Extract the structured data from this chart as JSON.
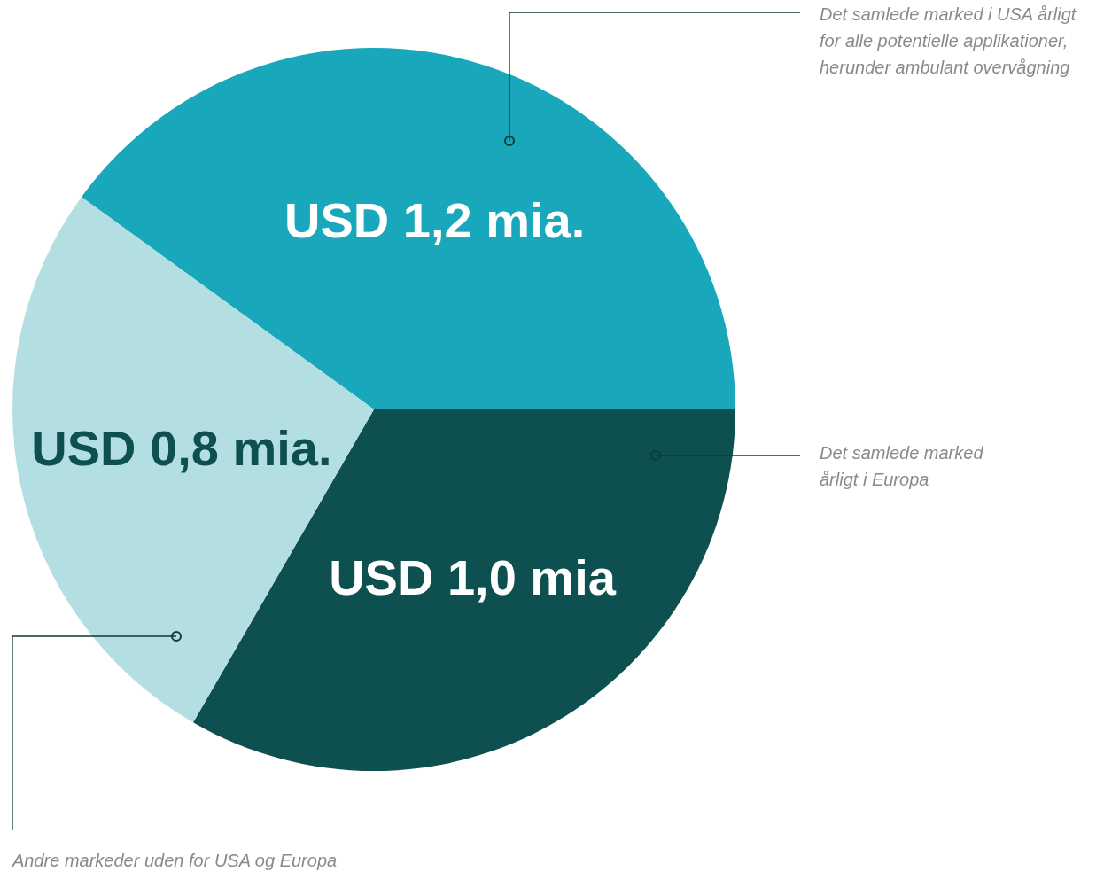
{
  "chart_data": {
    "type": "pie",
    "categories": [
      "Det samlede marked i USA årligt for alle potentielle applikationer, herunder ambulant overvågning",
      "Det samlede marked årligt i Europa",
      "Andre markeder uden for USA og Europa"
    ],
    "values": [
      1.2,
      1.0,
      0.8
    ],
    "colors": [
      "#19a7bc",
      "#0e5050",
      "#b3dfe3"
    ],
    "value_labels": [
      "USD 1,2 mia.",
      "USD 1,0 mia",
      "USD 0,8 mia."
    ]
  }
}
